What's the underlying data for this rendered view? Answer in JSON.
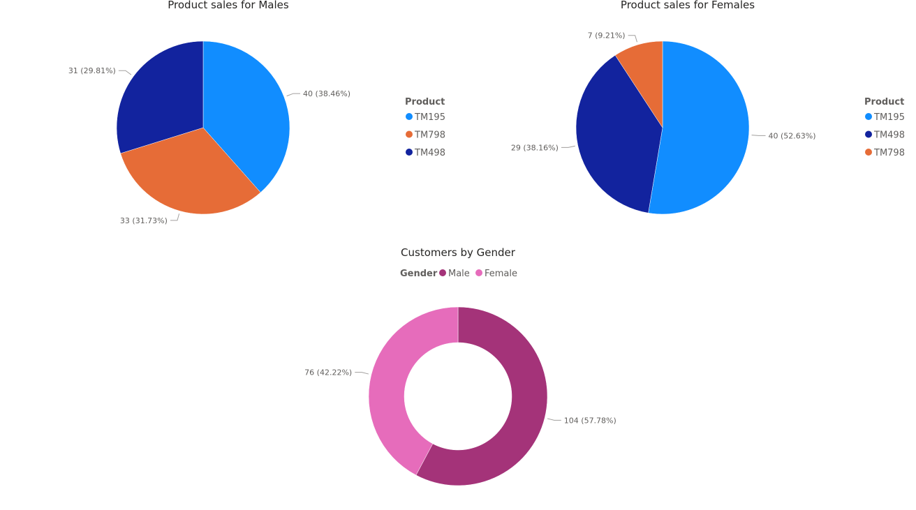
{
  "chart_data": [
    {
      "type": "pie",
      "title": "Product sales for Males",
      "legend_title": "Product",
      "legend_position": "right",
      "slices": [
        {
          "name": "TM195",
          "value": 40,
          "label": "40 (38.46%)",
          "color": "#118DFF"
        },
        {
          "name": "TM798",
          "value": 33,
          "label": "33 (31.73%)",
          "color": "#E66C37"
        },
        {
          "name": "TM498",
          "value": 31,
          "label": "31 (29.81%)",
          "color": "#12239E"
        }
      ]
    },
    {
      "type": "pie",
      "title": "Product sales for Females",
      "legend_title": "Product",
      "legend_position": "right",
      "slices": [
        {
          "name": "TM195",
          "value": 40,
          "label": "40 (52.63%)",
          "color": "#118DFF"
        },
        {
          "name": "TM498",
          "value": 29,
          "label": "29 (38.16%)",
          "color": "#12239E"
        },
        {
          "name": "TM798",
          "value": 7,
          "label": "7 (9.21%)",
          "color": "#E66C37"
        }
      ]
    },
    {
      "type": "donut",
      "title": "Customers by Gender",
      "legend_title": "Gender",
      "legend_position": "top",
      "slices": [
        {
          "name": "Male",
          "value": 104,
          "label": "104 (57.78%)",
          "color": "#A43379"
        },
        {
          "name": "Female",
          "value": 76,
          "label": "76 (42.22%)",
          "color": "#E66CBB"
        }
      ]
    }
  ]
}
